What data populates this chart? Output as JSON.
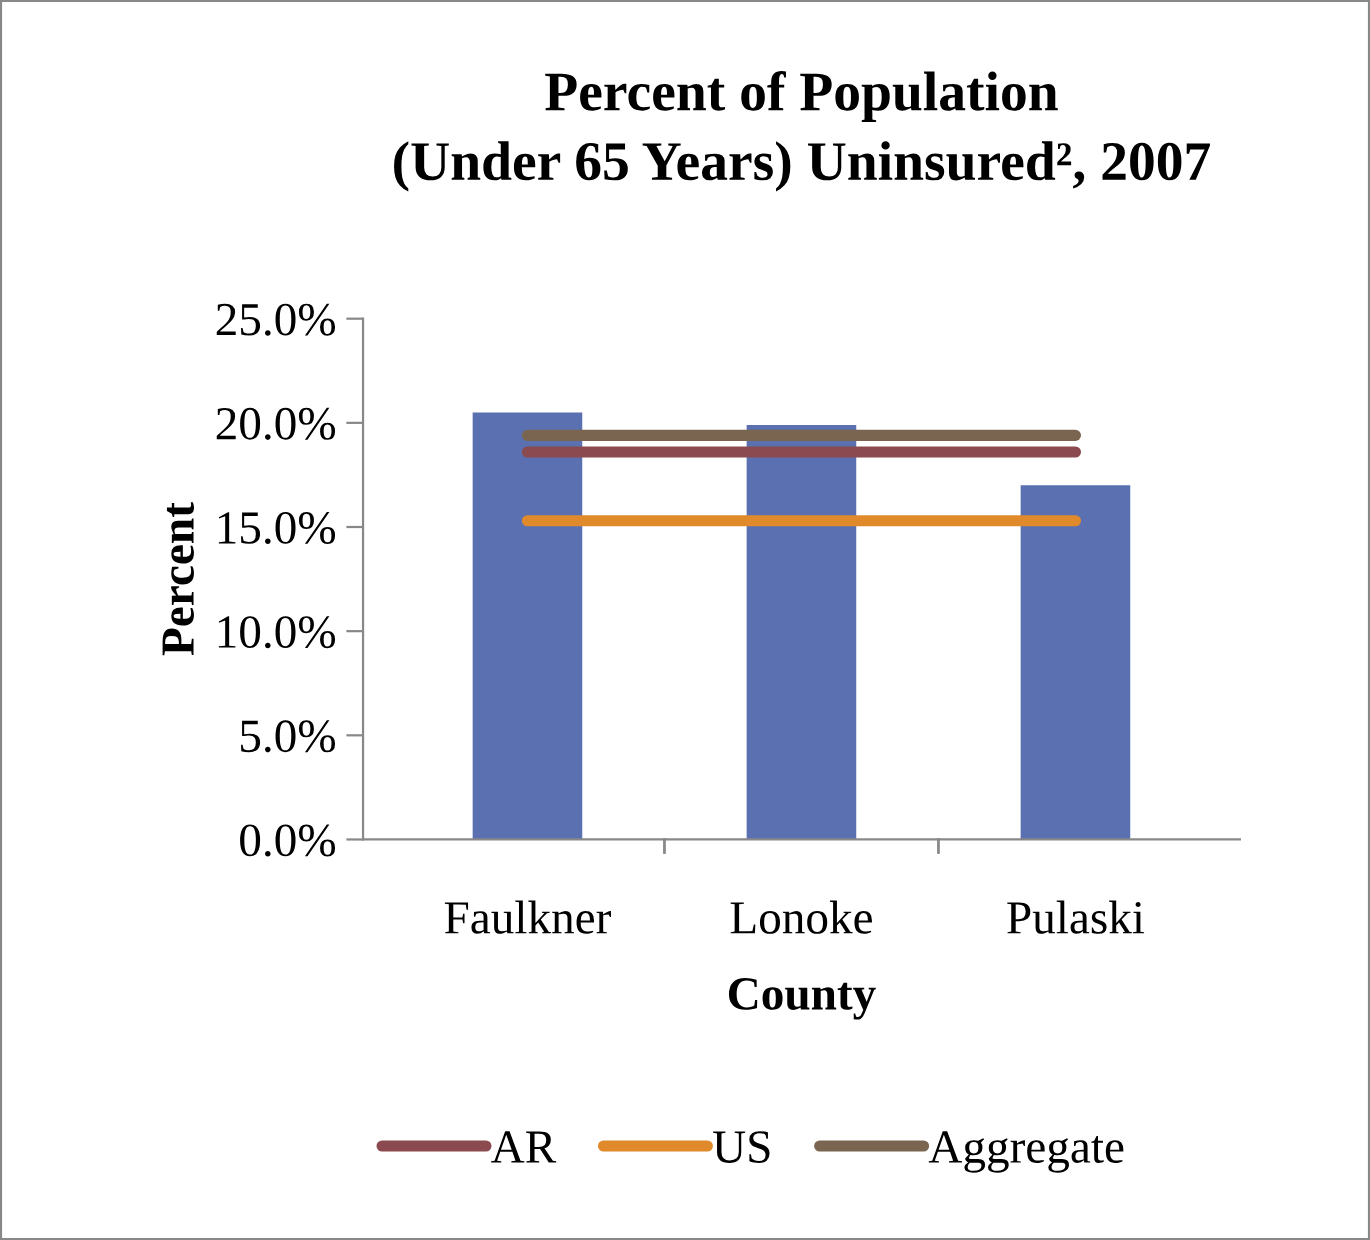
{
  "chart_data": {
    "type": "bar",
    "title": "Percent of Population\n(Under 65 Years) Uninsured², 2007",
    "xlabel": "County",
    "ylabel": "Percent",
    "categories": [
      "Faulkner",
      "Lonoke",
      "Pulaski"
    ],
    "series": [
      {
        "color": "#5b70b0",
        "values": [
          20.5,
          19.9,
          17.0
        ]
      },
      {
        "type": "line",
        "name": "AR",
        "color": "#8b4a4f",
        "values": [
          18.6,
          18.6,
          18.6
        ]
      },
      {
        "type": "line",
        "name": "US",
        "color": "#e08a2c",
        "values": [
          15.3,
          15.3,
          15.3
        ]
      },
      {
        "type": "line",
        "name": "Aggregate",
        "color": "#7a6650",
        "values": [
          19.4,
          19.4,
          19.4
        ]
      }
    ],
    "ylim": [
      0,
      25
    ],
    "yticks": [
      {
        "value": 0,
        "label": "0.0%"
      },
      {
        "value": 5,
        "label": "5.0%"
      },
      {
        "value": 10,
        "label": "10.0%"
      },
      {
        "value": 15,
        "label": "15.0%"
      },
      {
        "value": 20,
        "label": "20.0%"
      },
      {
        "value": 25,
        "label": "25.0%"
      }
    ],
    "grid": false,
    "legend": "bottom",
    "marker": "none",
    "line_style": "solid"
  }
}
